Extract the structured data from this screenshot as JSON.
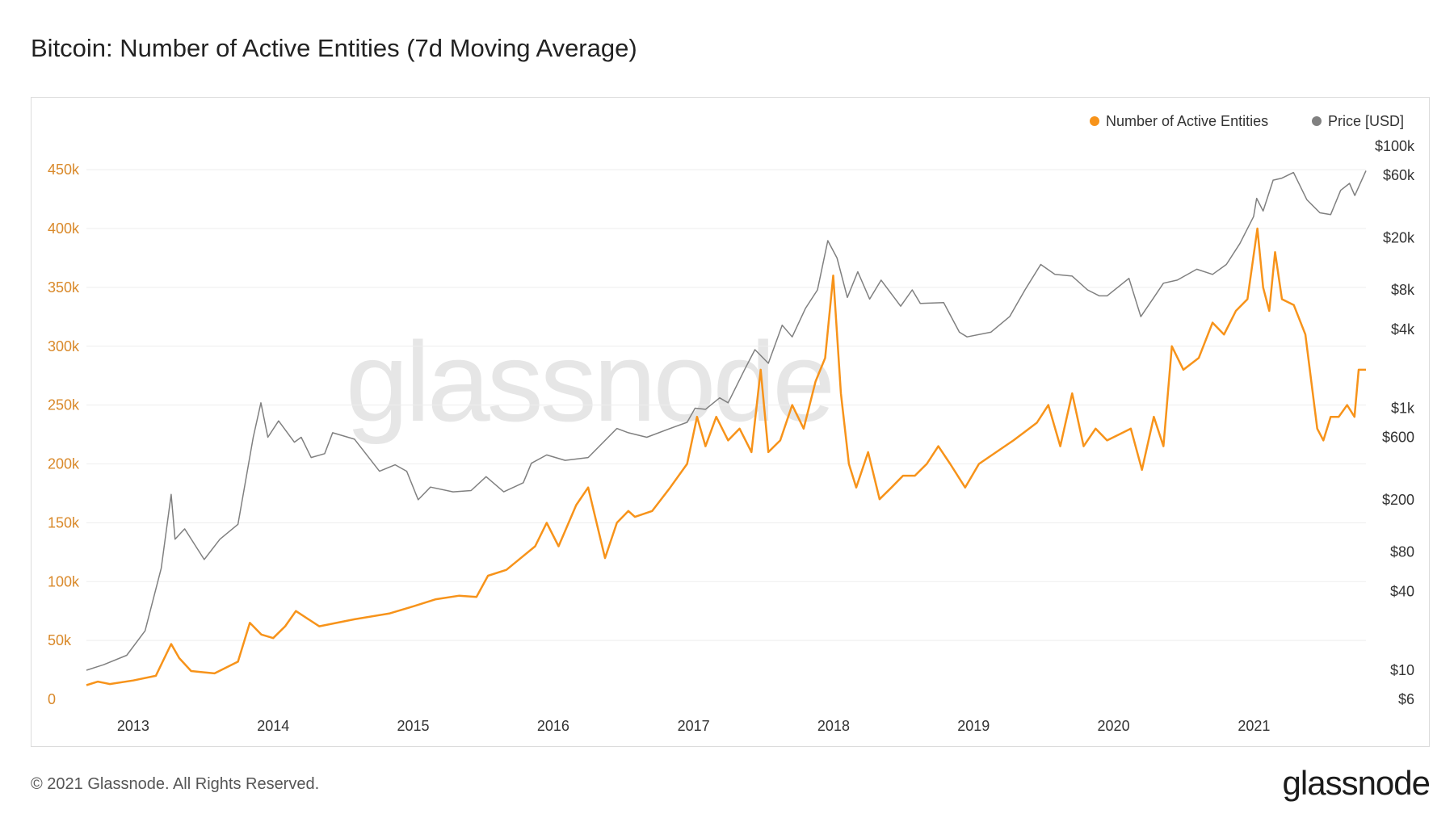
{
  "title": "Bitcoin: Number of Active Entities (7d Moving Average)",
  "footer": "© 2021 Glassnode. All Rights Reserved.",
  "brand": "glassnode",
  "watermark": "glassnode",
  "colors": {
    "entities": "#f7931a",
    "price": "#808080",
    "left_axis_text": "#d9892a",
    "grid": "#eeeeee"
  },
  "chart_data": {
    "type": "line",
    "title": "Bitcoin: Number of Active Entities (7d Moving Average)",
    "legend": [
      "Number of Active Entities",
      "Price [USD]"
    ],
    "legend_position": "top-right",
    "grid": true,
    "x_ticks": [
      "2013",
      "2014",
      "2015",
      "2016",
      "2017",
      "2018",
      "2019",
      "2020",
      "2021"
    ],
    "x_range": [
      "2012-09-01",
      "2021-10-20"
    ],
    "left_axis": {
      "ticks": [
        "0",
        "50k",
        "100k",
        "150k",
        "200k",
        "250k",
        "300k",
        "350k",
        "400k",
        "450k"
      ],
      "ylim": [
        0,
        470000
      ]
    },
    "right_axis": {
      "scale": "log",
      "ticks": [
        "$6",
        "$10",
        "$40",
        "$80",
        "$200",
        "$600",
        "$1k",
        "$4k",
        "$8k",
        "$20k",
        "$60k",
        "$100k"
      ],
      "ylim": [
        6,
        100000
      ]
    },
    "series": [
      {
        "name": "Number of Active Entities",
        "axis": "left",
        "x": [
          "2012-09-01",
          "2012-10-01",
          "2012-11-01",
          "2013-01-01",
          "2013-03-01",
          "2013-04-10",
          "2013-05-01",
          "2013-06-01",
          "2013-08-01",
          "2013-10-01",
          "2013-11-01",
          "2013-12-01",
          "2014-01-01",
          "2014-02-01",
          "2014-03-01",
          "2014-05-01",
          "2014-08-01",
          "2014-11-01",
          "2015-01-01",
          "2015-03-01",
          "2015-05-01",
          "2015-06-15",
          "2015-07-15",
          "2015-09-01",
          "2015-11-15",
          "2015-12-15",
          "2016-01-15",
          "2016-03-01",
          "2016-04-01",
          "2016-05-15",
          "2016-06-15",
          "2016-07-15",
          "2016-08-01",
          "2016-09-15",
          "2016-11-01",
          "2016-12-15",
          "2017-01-10",
          "2017-02-01",
          "2017-03-01",
          "2017-04-01",
          "2017-05-01",
          "2017-06-01",
          "2017-06-25",
          "2017-07-15",
          "2017-08-15",
          "2017-09-15",
          "2017-10-15",
          "2017-11-15",
          "2017-12-10",
          "2017-12-31",
          "2018-01-20",
          "2018-02-10",
          "2018-03-01",
          "2018-04-01",
          "2018-05-01",
          "2018-06-01",
          "2018-07-01",
          "2018-08-01",
          "2018-09-01",
          "2018-10-01",
          "2018-11-01",
          "2018-12-10",
          "2019-01-15",
          "2019-03-01",
          "2019-04-15",
          "2019-06-15",
          "2019-07-15",
          "2019-08-15",
          "2019-09-15",
          "2019-10-15",
          "2019-11-15",
          "2019-12-15",
          "2020-01-15",
          "2020-02-15",
          "2020-03-15",
          "2020-04-15",
          "2020-05-10",
          "2020-06-01",
          "2020-07-01",
          "2020-08-10",
          "2020-09-15",
          "2020-10-15",
          "2020-11-15",
          "2020-12-15",
          "2021-01-10",
          "2021-01-25",
          "2021-02-10",
          "2021-02-25",
          "2021-03-15",
          "2021-04-15",
          "2021-05-15",
          "2021-06-15",
          "2021-07-01",
          "2021-07-20",
          "2021-08-10",
          "2021-09-01",
          "2021-09-20",
          "2021-10-01",
          "2021-10-20"
        ],
        "values": [
          12000,
          15000,
          13000,
          16000,
          20000,
          47000,
          35000,
          24000,
          22000,
          32000,
          65000,
          55000,
          52000,
          62000,
          75000,
          62000,
          68000,
          73000,
          79000,
          85000,
          88000,
          87000,
          105000,
          110000,
          130000,
          150000,
          130000,
          165000,
          180000,
          120000,
          150000,
          160000,
          155000,
          160000,
          180000,
          200000,
          240000,
          215000,
          240000,
          220000,
          230000,
          210000,
          280000,
          210000,
          220000,
          250000,
          230000,
          270000,
          290000,
          360000,
          260000,
          200000,
          180000,
          210000,
          170000,
          180000,
          190000,
          190000,
          200000,
          215000,
          200000,
          180000,
          200000,
          210000,
          220000,
          235000,
          250000,
          215000,
          260000,
          215000,
          230000,
          220000,
          225000,
          230000,
          195000,
          240000,
          215000,
          300000,
          280000,
          290000,
          320000,
          310000,
          330000,
          340000,
          400000,
          350000,
          330000,
          380000,
          340000,
          335000,
          310000,
          230000,
          220000,
          240000,
          240000,
          250000,
          240000,
          280000,
          280000
        ]
      },
      {
        "name": "Price [USD]",
        "axis": "right",
        "scale": "log",
        "x": [
          "2012-09-01",
          "2012-10-15",
          "2012-12-15",
          "2013-02-01",
          "2013-03-15",
          "2013-04-10",
          "2013-04-20",
          "2013-05-15",
          "2013-07-05",
          "2013-08-15",
          "2013-10-01",
          "2013-11-10",
          "2013-11-30",
          "2013-12-18",
          "2014-01-15",
          "2014-02-25",
          "2014-03-15",
          "2014-04-10",
          "2014-05-15",
          "2014-06-05",
          "2014-08-01",
          "2014-10-05",
          "2014-11-15",
          "2014-12-15",
          "2015-01-14",
          "2015-02-15",
          "2015-04-15",
          "2015-06-01",
          "2015-07-10",
          "2015-08-25",
          "2015-10-15",
          "2015-11-05",
          "2015-12-15",
          "2016-02-01",
          "2016-04-01",
          "2016-06-15",
          "2016-07-15",
          "2016-09-01",
          "2016-11-01",
          "2016-12-15",
          "2017-01-05",
          "2017-02-01",
          "2017-03-10",
          "2017-04-01",
          "2017-05-15",
          "2017-06-10",
          "2017-07-15",
          "2017-08-20",
          "2017-09-15",
          "2017-10-20",
          "2017-11-20",
          "2017-12-17",
          "2018-01-10",
          "2018-02-06",
          "2018-03-05",
          "2018-04-05",
          "2018-05-05",
          "2018-06-25",
          "2018-07-25",
          "2018-08-15",
          "2018-10-15",
          "2018-11-25",
          "2018-12-15",
          "2019-02-15",
          "2019-04-05",
          "2019-05-15",
          "2019-06-25",
          "2019-08-01",
          "2019-09-15",
          "2019-10-25",
          "2019-11-25",
          "2019-12-15",
          "2020-02-10",
          "2020-03-12",
          "2020-04-15",
          "2020-05-10",
          "2020-06-15",
          "2020-08-05",
          "2020-09-15",
          "2020-10-21",
          "2020-11-25",
          "2020-12-31",
          "2021-01-08",
          "2021-01-25",
          "2021-02-20",
          "2021-03-15",
          "2021-04-14",
          "2021-05-19",
          "2021-06-22",
          "2021-07-20",
          "2021-08-15",
          "2021-09-07",
          "2021-09-21",
          "2021-10-20"
        ],
        "values": [
          10,
          11,
          13,
          20,
          60,
          220,
          100,
          120,
          70,
          100,
          130,
          600,
          1100,
          600,
          800,
          550,
          600,
          420,
          450,
          650,
          580,
          330,
          370,
          330,
          200,
          250,
          230,
          235,
          300,
          230,
          270,
          380,
          440,
          400,
          420,
          700,
          650,
          600,
          700,
          780,
          1000,
          980,
          1200,
          1100,
          2000,
          2800,
          2200,
          4300,
          3500,
          5800,
          8000,
          19000,
          14000,
          7000,
          11000,
          6800,
          9500,
          6000,
          8000,
          6300,
          6400,
          3800,
          3500,
          3800,
          5000,
          8000,
          12500,
          10500,
          10200,
          8000,
          7200,
          7200,
          9800,
          5000,
          7000,
          9000,
          9500,
          11500,
          10500,
          12500,
          18000,
          29000,
          40000,
          32000,
          55000,
          57000,
          63000,
          39000,
          31000,
          30000,
          46000,
          52000,
          42000,
          65000
        ]
      }
    ]
  }
}
